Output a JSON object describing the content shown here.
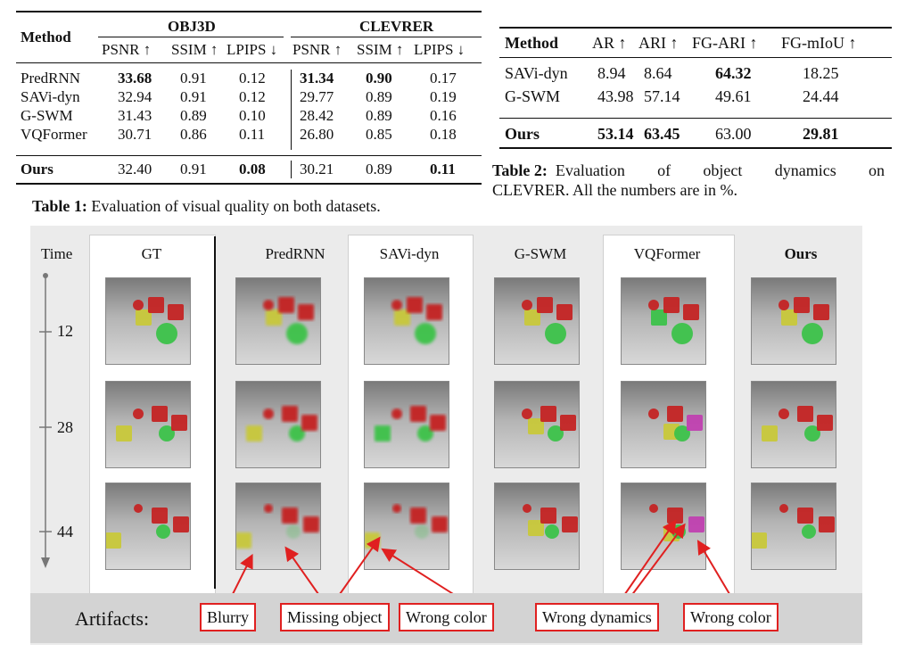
{
  "table1": {
    "headers": {
      "method": "Method",
      "group1": "OBJ3D",
      "group2": "CLEVRER",
      "cols": [
        "PSNR ↑",
        "SSIM ↑",
        "LPIPS ↓",
        "PSNR ↑",
        "SSIM ↑",
        "LPIPS ↓"
      ]
    },
    "rows": [
      {
        "method": "PredRNN",
        "values": [
          "33.68",
          "0.91",
          "0.12",
          "31.34",
          "0.90",
          "0.17"
        ],
        "bold": [
          true,
          false,
          false,
          true,
          true,
          false
        ]
      },
      {
        "method": "SAVi-dyn",
        "values": [
          "32.94",
          "0.91",
          "0.12",
          "29.77",
          "0.89",
          "0.19"
        ],
        "bold": [
          false,
          false,
          false,
          false,
          false,
          false
        ]
      },
      {
        "method": "G-SWM",
        "values": [
          "31.43",
          "0.89",
          "0.10",
          "28.42",
          "0.89",
          "0.16"
        ],
        "bold": [
          false,
          false,
          false,
          false,
          false,
          false
        ]
      },
      {
        "method": "VQFormer",
        "values": [
          "30.71",
          "0.86",
          "0.11",
          "26.80",
          "0.85",
          "0.18"
        ],
        "bold": [
          false,
          false,
          false,
          false,
          false,
          false
        ]
      }
    ],
    "ours": {
      "method": "Ours",
      "values": [
        "32.40",
        "0.91",
        "0.08",
        "30.21",
        "0.89",
        "0.11"
      ],
      "bold": [
        false,
        false,
        true,
        false,
        false,
        true
      ]
    },
    "caption_label": "Table 1:",
    "caption_text": "Evaluation of visual quality on both datasets."
  },
  "table2": {
    "headers": [
      "Method",
      "AR ↑",
      "ARI ↑",
      "FG-ARI ↑",
      "FG-mIoU ↑"
    ],
    "rows": [
      {
        "method": "SAVi-dyn",
        "values": [
          "8.94",
          "8.64",
          "64.32",
          "18.25"
        ],
        "bold": [
          false,
          false,
          true,
          false
        ]
      },
      {
        "method": "G-SWM",
        "values": [
          "43.98",
          "57.14",
          "49.61",
          "24.44"
        ],
        "bold": [
          false,
          false,
          false,
          false
        ]
      }
    ],
    "ours": {
      "method": "Ours",
      "values": [
        "53.14",
        "63.45",
        "63.00",
        "29.81"
      ],
      "bold": [
        true,
        true,
        false,
        true
      ]
    },
    "caption_label": "Table 2:",
    "caption_text_line1": "Evaluation of object dynamics on",
    "caption_text_line2": "CLEVRER. All the numbers are in %."
  },
  "figure": {
    "time_label": "Time",
    "times": [
      "12",
      "28",
      "44"
    ],
    "columns": [
      "GT",
      "PredRNN",
      "SAVi-dyn",
      "G-SWM",
      "VQFormer",
      "Ours"
    ],
    "artifacts_label": "Artifacts:",
    "artifacts": [
      "Blurry",
      "Missing object",
      "Wrong color",
      "Wrong dynamics",
      "Wrong color"
    ],
    "colors": {
      "arrow": "#e02020",
      "green": "#3cc24a",
      "yellow": "#c8c83a",
      "red": "#c42424",
      "magenta": "#c040b0"
    }
  }
}
